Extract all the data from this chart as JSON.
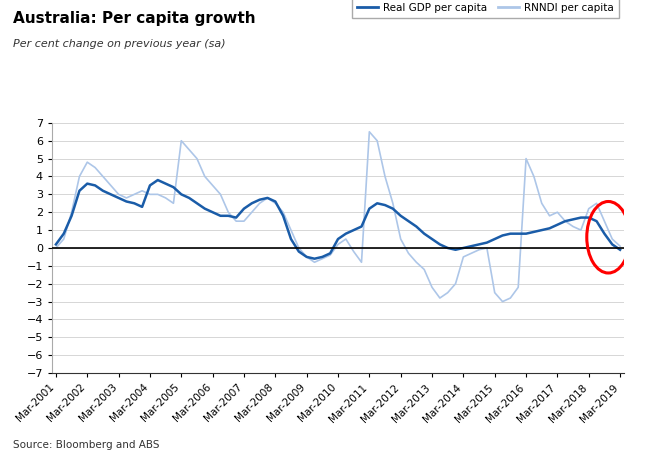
{
  "title": "Australia: Per capita growth",
  "subtitle": "Per cent change on previous year (sa)",
  "source": "Source: Bloomberg and ABS",
  "legend_labels": [
    "Real GDP per capita",
    "RNNDI per capita"
  ],
  "ylim": [
    -7,
    7
  ],
  "yticks": [
    -7,
    -6,
    -5,
    -4,
    -3,
    -2,
    -1,
    0,
    1,
    2,
    3,
    4,
    5,
    6,
    7
  ],
  "x_tick_labels": [
    "Mar-2001",
    "Mar-2002",
    "Mar-2003",
    "Mar-2004",
    "Mar-2005",
    "Mar-2006",
    "Mar-2007",
    "Mar-2008",
    "Mar-2009",
    "Mar-2010",
    "Mar-2011",
    "Mar-2012",
    "Mar-2013",
    "Mar-2014",
    "Mar-2015",
    "Mar-2016",
    "Mar-2017",
    "Mar-2018",
    "Mar-2019"
  ],
  "gdp_per_capita": [
    0.2,
    0.8,
    1.8,
    3.2,
    3.6,
    3.5,
    3.2,
    3.0,
    2.8,
    2.6,
    2.5,
    2.3,
    3.5,
    3.8,
    3.6,
    3.4,
    3.0,
    2.8,
    2.5,
    2.2,
    2.0,
    1.8,
    1.8,
    1.7,
    2.2,
    2.5,
    2.7,
    2.8,
    2.6,
    1.8,
    0.5,
    -0.2,
    -0.5,
    -0.6,
    -0.5,
    -0.3,
    0.5,
    0.8,
    1.0,
    1.2,
    2.2,
    2.5,
    2.4,
    2.2,
    1.8,
    1.5,
    1.2,
    0.8,
    0.5,
    0.2,
    0.0,
    -0.1,
    0.0,
    0.1,
    0.2,
    0.3,
    0.5,
    0.7,
    0.8,
    0.8,
    0.8,
    0.9,
    1.0,
    1.1,
    1.3,
    1.5,
    1.6,
    1.7,
    1.7,
    1.5,
    0.8,
    0.2,
    -0.1
  ],
  "rnndi_per_capita": [
    0.0,
    0.5,
    2.0,
    4.0,
    4.8,
    4.5,
    4.0,
    3.5,
    3.0,
    2.8,
    3.0,
    3.2,
    3.0,
    3.0,
    2.8,
    2.5,
    6.0,
    5.5,
    5.0,
    4.0,
    3.5,
    3.0,
    2.0,
    1.5,
    1.5,
    2.0,
    2.5,
    2.8,
    2.5,
    2.0,
    1.0,
    0.0,
    -0.5,
    -0.8,
    -0.6,
    -0.4,
    0.2,
    0.5,
    -0.2,
    -0.8,
    6.5,
    6.0,
    4.0,
    2.5,
    0.5,
    -0.3,
    -0.8,
    -1.2,
    -2.2,
    -2.8,
    -2.5,
    -2.0,
    -0.5,
    -0.3,
    -0.1,
    0.0,
    -2.5,
    -3.0,
    -2.8,
    -2.2,
    5.0,
    4.0,
    2.5,
    1.8,
    2.0,
    1.5,
    1.2,
    1.0,
    2.2,
    2.5,
    1.5,
    0.5,
    0.1
  ],
  "gdp_color": "#1a5ca8",
  "rnndi_color": "#adc6e8",
  "circle_color": "red",
  "bg_color": "#ffffff"
}
